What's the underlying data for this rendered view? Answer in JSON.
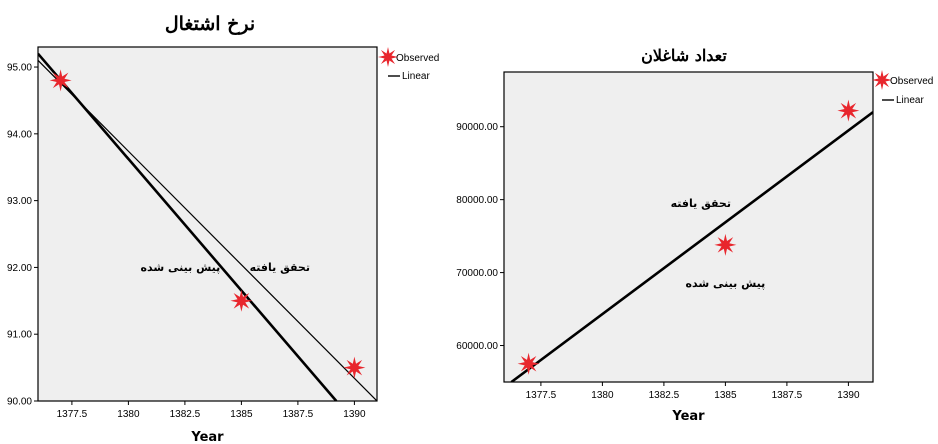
{
  "chart_data": [
    {
      "type": "line",
      "title": "نرخ اشتغال",
      "xlabel": "Year",
      "ylabel": "",
      "xlim": [
        1376,
        1391
      ],
      "ylim": [
        90,
        95.3
      ],
      "x_ticks": [
        1377.5,
        1380,
        1382.5,
        1385,
        1387.5,
        1390
      ],
      "x_tick_labels": [
        "1377.5",
        "1380",
        "1382.5",
        "1385",
        "1387.5",
        "1390"
      ],
      "y_ticks": [
        90,
        91,
        92,
        93,
        94,
        95
      ],
      "y_tick_labels": [
        "90.00",
        "91.00",
        "92.00",
        "93.00",
        "94.00",
        "95.00"
      ],
      "series": [
        {
          "name": "Observed",
          "kind": "scatter",
          "marker": "star",
          "color": "#e8262d",
          "points": [
            {
              "x": 1377,
              "y": 94.8
            },
            {
              "x": 1385,
              "y": 91.5
            },
            {
              "x": 1390,
              "y": 90.5
            }
          ]
        },
        {
          "name": "Linear",
          "kind": "line",
          "color": "#000000",
          "points": [
            {
              "x": 1376,
              "y": 95.1
            },
            {
              "x": 1391,
              "y": 90.0
            }
          ]
        },
        {
          "kind": "line",
          "color": "#000000",
          "bold": true,
          "points": [
            {
              "x": 1376,
              "y": 95.2
            },
            {
              "x": 1389.2,
              "y": 90.0
            }
          ]
        }
      ],
      "legend": {
        "position": "top-right",
        "items": [
          {
            "label": "Observed",
            "type": "marker"
          },
          {
            "label": "Linear",
            "type": "line"
          }
        ]
      },
      "annotations": [
        {
          "text": "تحقق یافته",
          "x": 1386.7,
          "y": 91.95
        },
        {
          "text": "پیش بینی شده",
          "x": 1382.3,
          "y": 91.95
        }
      ]
    },
    {
      "type": "line",
      "title": "تعداد شاغلان",
      "xlabel": "Year",
      "ylabel": "",
      "xlim": [
        1376,
        1391
      ],
      "ylim": [
        55000,
        97500
      ],
      "x_ticks": [
        1377.5,
        1380,
        1382.5,
        1385,
        1387.5,
        1390
      ],
      "x_tick_labels": [
        "1377.5",
        "1380",
        "1382.5",
        "1385",
        "1387.5",
        "1390"
      ],
      "y_ticks": [
        60000,
        70000,
        80000,
        90000
      ],
      "y_tick_labels": [
        "60000.00",
        "70000.00",
        "80000.00",
        "90000.00"
      ],
      "series": [
        {
          "name": "Observed",
          "kind": "scatter",
          "marker": "star",
          "color": "#e8262d",
          "points": [
            {
              "x": 1377,
              "y": 57500
            },
            {
              "x": 1385,
              "y": 73800
            },
            {
              "x": 1390,
              "y": 92200
            }
          ]
        },
        {
          "name": "Linear",
          "kind": "line",
          "color": "#000000",
          "bold": true,
          "points": [
            {
              "x": 1376.3,
              "y": 55000
            },
            {
              "x": 1391,
              "y": 92000
            }
          ]
        }
      ],
      "legend": {
        "position": "top-right",
        "items": [
          {
            "label": "Observed",
            "type": "marker"
          },
          {
            "label": "Linear",
            "type": "line"
          }
        ]
      },
      "annotations": [
        {
          "text": "تحقق یافته",
          "x": 1384,
          "y": 79000
        },
        {
          "text": "پیش بینی شده",
          "x": 1385,
          "y": 68000
        }
      ]
    }
  ]
}
